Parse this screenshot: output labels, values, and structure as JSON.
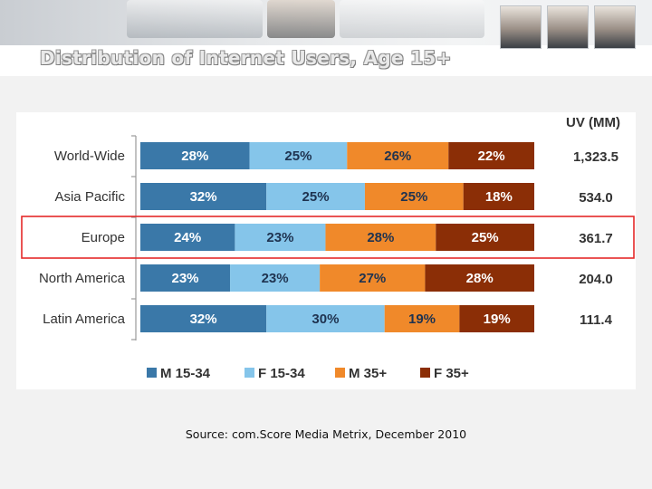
{
  "slide": {
    "title": "Distribution of Internet Users, Age 15+",
    "source": "Source: com.Score Media Metrix, December 2010"
  },
  "chart_data": {
    "type": "bar",
    "orientation": "horizontal",
    "stacked": true,
    "percent_stacked": true,
    "title": "",
    "categories": [
      "World-Wide",
      "Asia Pacific",
      "Europe",
      "North America",
      "Latin America"
    ],
    "series": [
      {
        "name": "M 15-34",
        "values": [
          28,
          32,
          24,
          23,
          32
        ],
        "labels": [
          "28%",
          "32%",
          "24%",
          "23%",
          "32%"
        ]
      },
      {
        "name": "F 15-34",
        "values": [
          25,
          25,
          23,
          23,
          30
        ],
        "labels": [
          "25%",
          "25%",
          "23%",
          "23%",
          "30%"
        ]
      },
      {
        "name": "M 35+",
        "values": [
          26,
          25,
          28,
          27,
          19
        ],
        "labels": [
          "26%",
          "25%",
          "28%",
          "27%",
          "19%"
        ]
      },
      {
        "name": "F 35+",
        "values": [
          22,
          18,
          25,
          28,
          19
        ],
        "labels": [
          "22%",
          "18%",
          "25%",
          "28%",
          "19%"
        ]
      }
    ],
    "side_column": {
      "header": "UV (MM)",
      "values": [
        "1,323.5",
        "534.0",
        "361.7",
        "204.0",
        "111.4"
      ]
    },
    "highlighted_category": "Europe",
    "legend_position": "bottom",
    "colors": {
      "m1534": "#3a78a8",
      "f1534": "#85c5ea",
      "m35": "#f0892a",
      "f35": "#8b2e06",
      "highlight": "#e52a2a",
      "dark_label": "#1f3350",
      "light_label": "#ffffff"
    }
  }
}
